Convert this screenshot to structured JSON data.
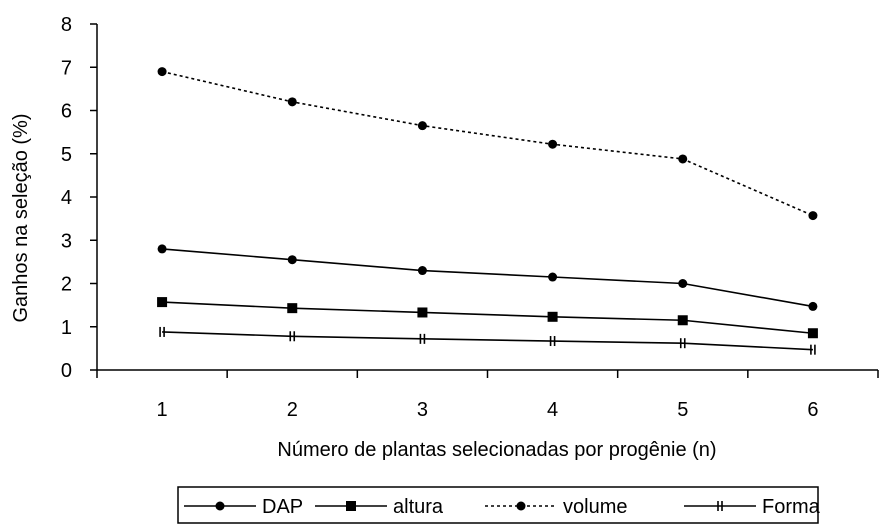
{
  "chart_data": {
    "type": "line",
    "title": "",
    "xlabel": "Número de plantas selecionadas por progênie (n)",
    "ylabel": "Ganhos na seleção (%)",
    "categories": [
      "1",
      "2",
      "3",
      "4",
      "5",
      "6"
    ],
    "ylim": [
      0,
      8
    ],
    "yticks": [
      "0",
      "1",
      "2",
      "3",
      "4",
      "5",
      "6",
      "7",
      "8"
    ],
    "grid": false,
    "legend_position": "bottom",
    "series": [
      {
        "name": "DAP",
        "marker": "circle",
        "line": "solid",
        "values": [
          2.8,
          2.55,
          2.3,
          2.15,
          2.0,
          1.47
        ]
      },
      {
        "name": "altura",
        "marker": "square",
        "line": "solid",
        "values": [
          1.57,
          1.43,
          1.33,
          1.23,
          1.15,
          0.85
        ]
      },
      {
        "name": "volume",
        "marker": "circle",
        "line": "dotted",
        "values": [
          6.9,
          6.2,
          5.65,
          5.22,
          4.88,
          3.57
        ]
      },
      {
        "name": "Forma",
        "marker": "double-bar",
        "line": "solid",
        "values": [
          0.88,
          0.78,
          0.72,
          0.67,
          0.62,
          0.47
        ]
      }
    ],
    "colors": {
      "line": "#000000",
      "background": "#ffffff"
    }
  }
}
